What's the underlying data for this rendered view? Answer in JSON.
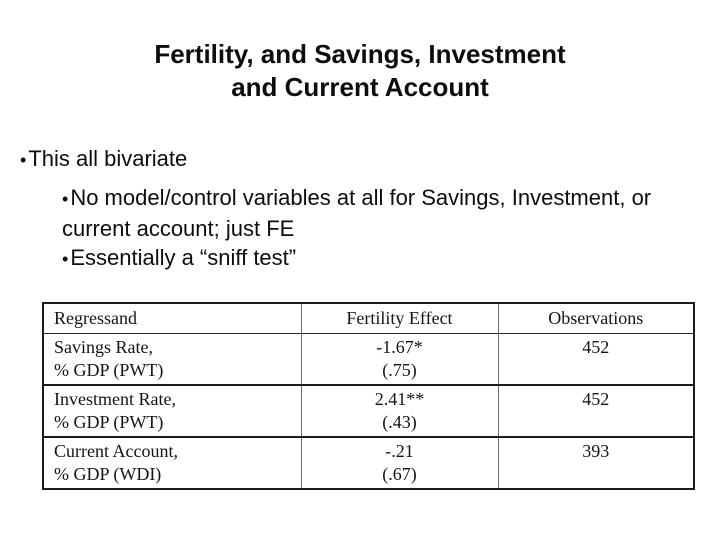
{
  "slide": {
    "title": {
      "line1": "Fertility, and Savings, Investment",
      "line2": "and Current Account"
    },
    "bullets": {
      "glyph": "•",
      "level1": "This all bivariate",
      "sub1": "No model/control variables at all for Savings, Investment, or current account; just FE",
      "sub2": "Essentially a “sniff test”"
    },
    "table": {
      "headers": [
        "Regressand",
        "Fertility Effect",
        "Observations"
      ],
      "rows": [
        {
          "regressand_line1": "Savings Rate,",
          "regressand_line2": "% GDP (PWT)",
          "effect": "-1.67*",
          "se": "(.75)",
          "observations": "452"
        },
        {
          "regressand_line1": "Investment Rate,",
          "regressand_line2": "% GDP (PWT)",
          "effect": "2.41**",
          "se": "(.43)",
          "observations": "452"
        },
        {
          "regressand_line1": "Current Account,",
          "regressand_line2": "% GDP (WDI)",
          "effect": "-.21",
          "se": "(.67)",
          "observations": "393"
        }
      ]
    }
  }
}
